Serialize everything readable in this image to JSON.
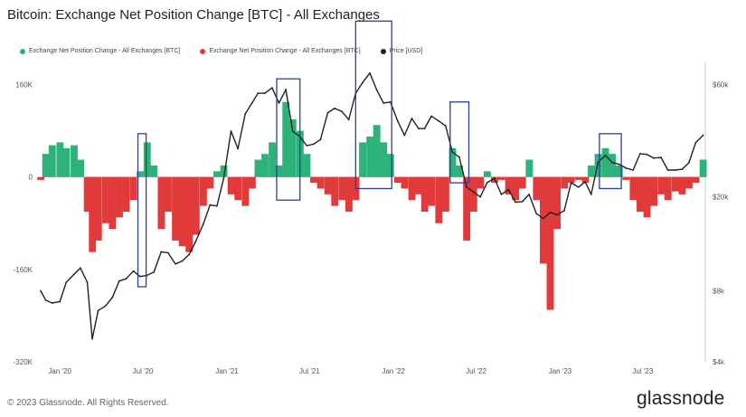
{
  "header": {
    "title": "Bitcoin: Exchange Net Position Change [BTC] - All Exchanges"
  },
  "legend": {
    "items": [
      {
        "label": "Exchange Net Position Change - All Exchanges [BTC]",
        "color": "#2db37a"
      },
      {
        "label": "Exchange Net Position Change - All Exchanges [BTC]",
        "color": "#e23a3a"
      },
      {
        "label": "Price [USD]",
        "color": "#222222"
      }
    ]
  },
  "footer": {
    "copyright": "© 2023 Glassnode. All Rights Reserved.",
    "brand": "glassnode"
  },
  "chart_data": {
    "type": "bar",
    "title": "Bitcoin: Exchange Net Position Change [BTC] - All Exchanges",
    "x_range": [
      "2019-11-20",
      "2023-11-15"
    ],
    "x_ticks": [
      "Jan '20",
      "Jul '20",
      "Jan '21",
      "Jul '21",
      "Jan '22",
      "Jul '22",
      "Jan '23",
      "Jul '23"
    ],
    "y_left": {
      "label": "Exchange Net Position Change [BTC]",
      "ticks": [
        "160K",
        "0",
        "-160K",
        "-320K"
      ],
      "range": [
        -320000,
        200000
      ]
    },
    "y_right": {
      "label": "Price [USD]",
      "scale": "log",
      "ticks": [
        "$60k",
        "$20k",
        "$8k",
        "$4k"
      ],
      "range": [
        4000,
        75000
      ]
    },
    "colors": {
      "positive": "#2db37a",
      "negative": "#e23a3a",
      "price": "#222222",
      "highlight": "#2b3f9e"
    },
    "net_position_change": {
      "dates": [
        "2019-11-20",
        "2019-12-01",
        "2019-12-15",
        "2020-01-01",
        "2020-01-15",
        "2020-02-01",
        "2020-02-15",
        "2020-03-01",
        "2020-03-12",
        "2020-03-25",
        "2020-04-10",
        "2020-04-25",
        "2020-05-10",
        "2020-05-25",
        "2020-06-10",
        "2020-06-25",
        "2020-07-10",
        "2020-07-25",
        "2020-08-10",
        "2020-08-25",
        "2020-09-10",
        "2020-09-25",
        "2020-10-10",
        "2020-10-25",
        "2020-11-10",
        "2020-11-25",
        "2020-12-10",
        "2020-12-25",
        "2021-01-10",
        "2021-01-25",
        "2021-02-10",
        "2021-02-25",
        "2021-03-10",
        "2021-03-25",
        "2021-04-10",
        "2021-04-25",
        "2021-05-10",
        "2021-05-25",
        "2021-06-10",
        "2021-06-25",
        "2021-07-10",
        "2021-07-25",
        "2021-08-10",
        "2021-08-25",
        "2021-09-10",
        "2021-09-25",
        "2021-10-10",
        "2021-10-25",
        "2021-11-10",
        "2021-11-25",
        "2021-12-10",
        "2021-12-25",
        "2022-01-10",
        "2022-01-25",
        "2022-02-10",
        "2022-02-25",
        "2022-03-10",
        "2022-03-25",
        "2022-04-10",
        "2022-04-25",
        "2022-05-10",
        "2022-05-25",
        "2022-06-10",
        "2022-06-25",
        "2022-07-10",
        "2022-07-25",
        "2022-08-10",
        "2022-08-25",
        "2022-09-10",
        "2022-09-25",
        "2022-10-10",
        "2022-10-25",
        "2022-11-10",
        "2022-11-25",
        "2022-12-10",
        "2022-12-25",
        "2023-01-10",
        "2023-01-25",
        "2023-02-10",
        "2023-02-25",
        "2023-03-10",
        "2023-03-25",
        "2023-04-10",
        "2023-04-25",
        "2023-05-10",
        "2023-05-25",
        "2023-06-10",
        "2023-06-25",
        "2023-07-10",
        "2023-07-25",
        "2023-08-10",
        "2023-08-25",
        "2023-09-10",
        "2023-09-25",
        "2023-10-10",
        "2023-10-25",
        "2023-11-10"
      ],
      "values": [
        -5000,
        40000,
        55000,
        60000,
        50000,
        55000,
        30000,
        -60000,
        -130000,
        -110000,
        -80000,
        -90000,
        -70000,
        -60000,
        -40000,
        10000,
        60000,
        20000,
        -90000,
        -60000,
        -110000,
        -120000,
        -130000,
        -100000,
        -50000,
        -20000,
        10000,
        20000,
        -30000,
        -40000,
        -50000,
        -20000,
        30000,
        40000,
        60000,
        20000,
        130000,
        100000,
        80000,
        40000,
        -10000,
        -20000,
        -30000,
        -50000,
        -40000,
        -60000,
        -40000,
        60000,
        70000,
        90000,
        60000,
        40000,
        -10000,
        -20000,
        -40000,
        -30000,
        -60000,
        -50000,
        -80000,
        -60000,
        50000,
        20000,
        -110000,
        -60000,
        -20000,
        10000,
        -10000,
        -5000,
        -30000,
        -40000,
        -20000,
        30000,
        -40000,
        -150000,
        -230000,
        -90000,
        -20000,
        -10000,
        -5000,
        -10000,
        20000,
        40000,
        50000,
        40000,
        20000,
        -5000,
        -40000,
        -60000,
        -70000,
        -50000,
        -30000,
        -40000,
        -25000,
        -30000,
        -20000,
        -10000,
        30000
      ]
    },
    "price": {
      "dates": [
        "2019-11-20",
        "2019-12-01",
        "2019-12-15",
        "2020-01-01",
        "2020-01-15",
        "2020-02-01",
        "2020-02-15",
        "2020-03-01",
        "2020-03-12",
        "2020-03-25",
        "2020-04-10",
        "2020-04-25",
        "2020-05-10",
        "2020-05-25",
        "2020-06-10",
        "2020-06-25",
        "2020-07-10",
        "2020-07-25",
        "2020-08-10",
        "2020-08-25",
        "2020-09-10",
        "2020-09-25",
        "2020-10-10",
        "2020-10-25",
        "2020-11-10",
        "2020-11-25",
        "2020-12-10",
        "2020-12-25",
        "2021-01-10",
        "2021-01-25",
        "2021-02-10",
        "2021-02-25",
        "2021-03-10",
        "2021-03-25",
        "2021-04-10",
        "2021-04-25",
        "2021-05-10",
        "2021-05-25",
        "2021-06-10",
        "2021-06-25",
        "2021-07-10",
        "2021-07-25",
        "2021-08-10",
        "2021-08-25",
        "2021-09-10",
        "2021-09-25",
        "2021-10-10",
        "2021-10-25",
        "2021-11-10",
        "2021-11-25",
        "2021-12-10",
        "2021-12-25",
        "2022-01-10",
        "2022-01-25",
        "2022-02-10",
        "2022-02-25",
        "2022-03-10",
        "2022-03-25",
        "2022-04-10",
        "2022-04-25",
        "2022-05-10",
        "2022-05-25",
        "2022-06-10",
        "2022-06-25",
        "2022-07-10",
        "2022-07-25",
        "2022-08-10",
        "2022-08-25",
        "2022-09-10",
        "2022-09-25",
        "2022-10-10",
        "2022-10-25",
        "2022-11-10",
        "2022-11-25",
        "2022-12-10",
        "2022-12-25",
        "2023-01-10",
        "2023-01-25",
        "2023-02-10",
        "2023-02-25",
        "2023-03-10",
        "2023-03-25",
        "2023-04-10",
        "2023-04-25",
        "2023-05-10",
        "2023-05-25",
        "2023-06-10",
        "2023-06-25",
        "2023-07-10",
        "2023-07-25",
        "2023-08-10",
        "2023-08-25",
        "2023-09-10",
        "2023-09-25",
        "2023-10-10",
        "2023-10-25",
        "2023-11-10"
      ],
      "values": [
        8000,
        7300,
        7100,
        7200,
        8700,
        9400,
        10000,
        8700,
        5000,
        6600,
        6900,
        7500,
        8800,
        9000,
        9700,
        9200,
        9300,
        9600,
        11700,
        11600,
        10400,
        10700,
        11400,
        13000,
        15300,
        18500,
        18300,
        24000,
        38000,
        32000,
        45000,
        50000,
        55000,
        55000,
        58000,
        50000,
        57000,
        38000,
        36000,
        33000,
        33500,
        35000,
        45500,
        47500,
        46000,
        42500,
        55000,
        61000,
        67000,
        57000,
        50000,
        50500,
        42000,
        36500,
        43000,
        39000,
        39000,
        44000,
        42000,
        40000,
        31000,
        29500,
        22000,
        21000,
        20000,
        23000,
        24000,
        20500,
        21500,
        19000,
        19100,
        20500,
        17000,
        16200,
        17200,
        16800,
        17500,
        23000,
        22000,
        23200,
        20500,
        28000,
        30000,
        28000,
        27500,
        26500,
        26000,
        30500,
        30300,
        29200,
        29400,
        26000,
        26000,
        26200,
        27900,
        34000,
        36500
      ]
    },
    "highlight_boxes": [
      {
        "from": "2020-06-20",
        "to": "2020-07-08",
        "y_top": 75000,
        "y_bottom": -190000
      },
      {
        "from": "2021-04-20",
        "to": "2021-06-10",
        "y_top": 170000,
        "y_bottom": -40000
      },
      {
        "from": "2021-10-10",
        "to": "2021-12-28",
        "y_top": 270000,
        "y_bottom": -20000
      },
      {
        "from": "2022-05-05",
        "to": "2022-06-15",
        "y_top": 130000,
        "y_bottom": -10000
      },
      {
        "from": "2023-03-28",
        "to": "2023-05-15",
        "y_top": 75000,
        "y_bottom": -20000
      }
    ]
  }
}
